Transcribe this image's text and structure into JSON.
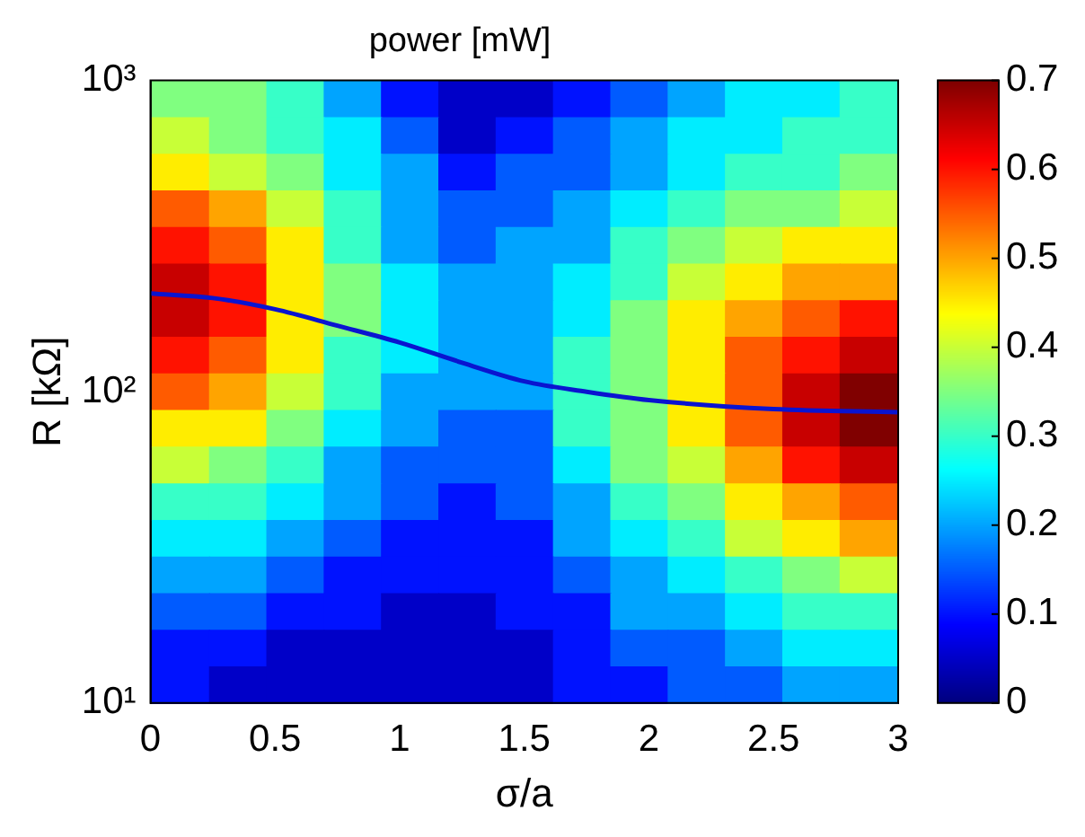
{
  "chart_data": {
    "type": "heatmap",
    "title": "power [mW]",
    "xlabel": "σ/a",
    "ylabel": "R [kΩ]",
    "x": [
      0.12,
      0.35,
      0.58,
      0.81,
      1.04,
      1.27,
      1.5,
      1.73,
      1.96,
      2.19,
      2.42,
      2.65,
      2.88
    ],
    "cells": [
      [
        0.35,
        0.35,
        0.3,
        0.2,
        0.1,
        0.05,
        0.05,
        0.1,
        0.15,
        0.2,
        0.25,
        0.25,
        0.3
      ],
      [
        0.4,
        0.35,
        0.3,
        0.25,
        0.15,
        0.05,
        0.1,
        0.15,
        0.2,
        0.25,
        0.25,
        0.3,
        0.3
      ],
      [
        0.45,
        0.4,
        0.35,
        0.25,
        0.2,
        0.1,
        0.15,
        0.15,
        0.2,
        0.25,
        0.3,
        0.3,
        0.35
      ],
      [
        0.55,
        0.5,
        0.4,
        0.3,
        0.2,
        0.15,
        0.15,
        0.2,
        0.25,
        0.3,
        0.35,
        0.35,
        0.4
      ],
      [
        0.6,
        0.55,
        0.45,
        0.3,
        0.2,
        0.15,
        0.2,
        0.2,
        0.3,
        0.35,
        0.4,
        0.45,
        0.45
      ],
      [
        0.65,
        0.6,
        0.45,
        0.35,
        0.25,
        0.2,
        0.2,
        0.25,
        0.3,
        0.4,
        0.45,
        0.5,
        0.5
      ],
      [
        0.65,
        0.6,
        0.45,
        0.35,
        0.25,
        0.2,
        0.2,
        0.25,
        0.35,
        0.45,
        0.5,
        0.55,
        0.6
      ],
      [
        0.6,
        0.55,
        0.45,
        0.3,
        0.25,
        0.2,
        0.2,
        0.3,
        0.35,
        0.45,
        0.55,
        0.6,
        0.65
      ],
      [
        0.55,
        0.5,
        0.4,
        0.3,
        0.2,
        0.2,
        0.2,
        0.3,
        0.35,
        0.45,
        0.55,
        0.65,
        0.7
      ],
      [
        0.45,
        0.45,
        0.35,
        0.25,
        0.2,
        0.15,
        0.15,
        0.3,
        0.35,
        0.45,
        0.55,
        0.65,
        0.7
      ],
      [
        0.4,
        0.35,
        0.3,
        0.2,
        0.15,
        0.15,
        0.15,
        0.25,
        0.35,
        0.4,
        0.5,
        0.6,
        0.65
      ],
      [
        0.3,
        0.3,
        0.25,
        0.2,
        0.15,
        0.1,
        0.15,
        0.2,
        0.3,
        0.35,
        0.45,
        0.5,
        0.55
      ],
      [
        0.25,
        0.25,
        0.2,
        0.15,
        0.1,
        0.1,
        0.1,
        0.2,
        0.25,
        0.3,
        0.4,
        0.45,
        0.5
      ],
      [
        0.2,
        0.2,
        0.15,
        0.1,
        0.1,
        0.1,
        0.1,
        0.15,
        0.2,
        0.25,
        0.3,
        0.35,
        0.4
      ],
      [
        0.15,
        0.15,
        0.1,
        0.1,
        0.05,
        0.05,
        0.1,
        0.1,
        0.2,
        0.2,
        0.25,
        0.3,
        0.3
      ],
      [
        0.1,
        0.1,
        0.05,
        0.05,
        0.05,
        0.05,
        0.05,
        0.1,
        0.15,
        0.15,
        0.2,
        0.25,
        0.25
      ],
      [
        0.1,
        0.05,
        0.05,
        0.05,
        0.05,
        0.05,
        0.05,
        0.1,
        0.1,
        0.15,
        0.15,
        0.2,
        0.2
      ]
    ],
    "clim": [
      0,
      0.7
    ],
    "cticks": [
      0,
      0.1,
      0.2,
      0.3,
      0.4,
      0.5,
      0.6,
      0.7
    ],
    "xlim": [
      0,
      3
    ],
    "xticks": [
      0,
      0.5,
      1,
      1.5,
      2,
      2.5,
      3
    ],
    "ylim": [
      10,
      1000
    ],
    "yticks": [
      {
        "value": 10,
        "label": "10¹"
      },
      {
        "value": 100,
        "label": "10²"
      },
      {
        "value": 1000,
        "label": "10³"
      }
    ],
    "log": "y",
    "grid": false,
    "series": [
      {
        "type": "line",
        "color": "#0a14d0",
        "x": [
          0,
          0.25,
          0.5,
          0.75,
          1,
          1.25,
          1.5,
          1.75,
          2,
          2.5,
          3
        ],
        "values": [
          207,
          200,
          184,
          163,
          144,
          124,
          108,
          100,
          94,
          88,
          86
        ]
      }
    ]
  }
}
